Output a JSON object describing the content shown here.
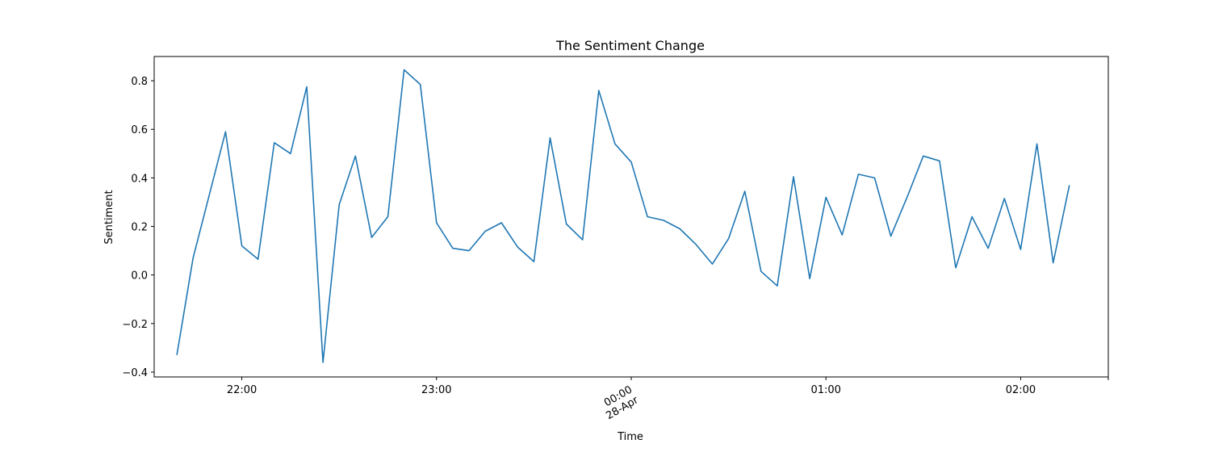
{
  "chart_data": {
    "type": "line",
    "title": "The Sentiment Change",
    "xlabel": "Time",
    "ylabel": "Sentiment",
    "ylim": [
      -0.42,
      0.9
    ],
    "xlim": [
      "21:33",
      "02:27"
    ],
    "grid": false,
    "yticks": [
      -0.4,
      -0.2,
      0.0,
      0.2,
      0.4,
      0.6,
      0.8
    ],
    "ytick_labels": [
      "−0.4",
      "−0.2",
      "0.0",
      "0.2",
      "0.4",
      "0.6",
      "0.8"
    ],
    "xticks": [
      {
        "time": "22:00",
        "label": "22:00"
      },
      {
        "time": "23:00",
        "label": "23:00"
      },
      {
        "time": "00:00",
        "label": "00:00",
        "sublabel": "28-Apr",
        "rotated": true
      },
      {
        "time": "01:00",
        "label": "01:00"
      },
      {
        "time": "02:00",
        "label": "02:00"
      },
      {
        "time": "02:27",
        "label": ""
      }
    ],
    "series": [
      {
        "color": "#1f77b4",
        "x": [
          "21:40",
          "21:45",
          "21:50",
          "21:55",
          "22:00",
          "22:05",
          "22:10",
          "22:15",
          "22:20",
          "22:25",
          "22:30",
          "22:35",
          "22:40",
          "22:45",
          "22:50",
          "22:55",
          "23:00",
          "23:05",
          "23:10",
          "23:15",
          "23:20",
          "23:25",
          "23:30",
          "23:35",
          "23:40",
          "23:45",
          "23:50",
          "23:55",
          "00:00",
          "00:05",
          "00:10",
          "00:15",
          "00:20",
          "00:25",
          "00:30",
          "00:35",
          "00:40",
          "00:45",
          "00:50",
          "00:55",
          "01:00",
          "01:05",
          "01:10",
          "01:15",
          "01:20",
          "01:25",
          "01:30",
          "01:35",
          "01:40",
          "01:45",
          "01:50",
          "01:55",
          "02:00",
          "02:05",
          "02:10",
          "02:15"
        ],
        "values": [
          -0.33,
          0.07,
          0.33,
          0.59,
          0.12,
          0.065,
          0.545,
          0.5,
          0.775,
          -0.36,
          0.29,
          0.49,
          0.155,
          0.24,
          0.845,
          0.785,
          0.215,
          0.11,
          0.1,
          0.18,
          0.215,
          0.115,
          0.055,
          0.565,
          0.21,
          0.145,
          0.76,
          0.54,
          0.465,
          0.24,
          0.225,
          0.19,
          0.125,
          0.045,
          0.15,
          0.345,
          0.015,
          -0.045,
          0.405,
          -0.015,
          0.32,
          0.165,
          0.415,
          0.4,
          0.16,
          0.32,
          0.49,
          0.47,
          0.03,
          0.24,
          0.11,
          0.315,
          0.105,
          0.54,
          0.05,
          0.37
        ]
      }
    ]
  }
}
